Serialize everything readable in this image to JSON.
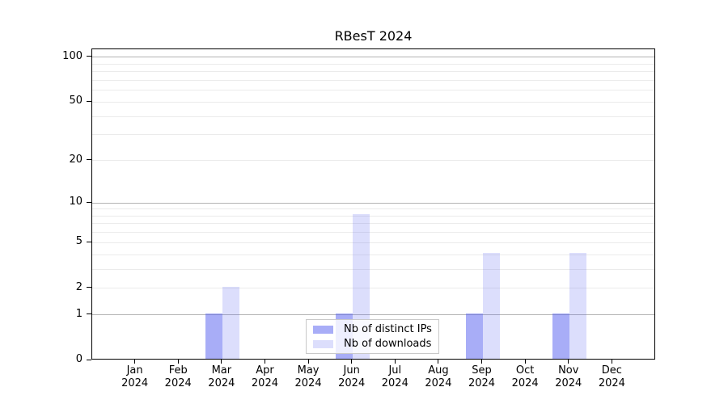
{
  "chart_data": {
    "type": "bar",
    "title": "RBesT 2024",
    "categories": [
      "Jan",
      "Feb",
      "Mar",
      "Apr",
      "May",
      "Jun",
      "Jul",
      "Aug",
      "Sep",
      "Oct",
      "Nov",
      "Dec"
    ],
    "x_year_label": "2024",
    "series": [
      {
        "name": "Nb of distinct IPs",
        "color": "#525cef",
        "opacity": 0.5,
        "values": [
          0,
          0,
          1,
          0,
          0,
          1,
          0,
          0,
          1,
          0,
          1,
          0
        ]
      },
      {
        "name": "Nb of downloads",
        "color": "#525cef",
        "opacity": 0.2,
        "values": [
          0,
          0,
          2,
          0,
          0,
          8,
          0,
          0,
          4,
          0,
          4,
          0
        ]
      }
    ],
    "yscale": "log1p",
    "ylim": [
      0,
      113
    ],
    "ytick_labels": [
      0,
      1,
      2,
      5,
      10,
      20,
      50,
      100
    ],
    "major_gridlines": [
      1,
      10,
      100
    ],
    "minor_gridlines": [
      2,
      3,
      4,
      5,
      6,
      7,
      8,
      9,
      20,
      30,
      40,
      50,
      60,
      70,
      80,
      90
    ],
    "legend_position": "lower center",
    "grid": true,
    "colors": {
      "major_grid": "#b3b3b3",
      "minor_grid": "#ebebeb",
      "frame": "#000000",
      "legend_border": "#c9c9c9",
      "background": "#ffffff"
    }
  }
}
